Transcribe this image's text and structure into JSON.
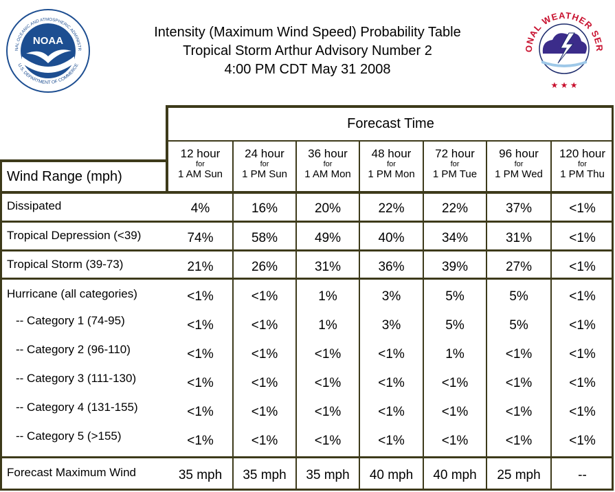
{
  "title": {
    "line1": "Intensity (Maximum Wind Speed) Probability Table",
    "line2": "Tropical Storm Arthur Advisory Number 2",
    "line3": "4:00 PM CDT May 31 2008"
  },
  "logos": {
    "noaa": {
      "icon": "noaa-logo",
      "text_ring": "NATIONAL OCEANIC AND ATMOSPHERIC ADMINISTRATION · U.S. DEPARTMENT OF COMMERCE",
      "center": "NOAA"
    },
    "nws": {
      "icon": "nws-logo",
      "text_ring": "NATIONAL WEATHER SERVICE"
    }
  },
  "colors": {
    "border": "#3d3a1a",
    "noaa_blue": "#1d4e91",
    "nws_red": "#c8102e",
    "nws_navy": "#1b2a6b"
  },
  "table": {
    "header_title": "Forecast Time",
    "row_header": "Wind Range (mph)",
    "columns": [
      {
        "hours": "12 hour",
        "for": "for",
        "when": "1 AM Sun"
      },
      {
        "hours": "24 hour",
        "for": "for",
        "when": "1 PM Sun"
      },
      {
        "hours": "36 hour",
        "for": "for",
        "when": "1 AM Mon"
      },
      {
        "hours": "48 hour",
        "for": "for",
        "when": "1 PM Mon"
      },
      {
        "hours": "72 hour",
        "for": "for",
        "when": "1 PM Tue"
      },
      {
        "hours": "96 hour",
        "for": "for",
        "when": "1 PM Wed"
      },
      {
        "hours": "120 hour",
        "for": "for",
        "when": "1 PM Thu"
      }
    ],
    "rows": [
      {
        "label": "Dissipated",
        "values": [
          "4%",
          "16%",
          "20%",
          "22%",
          "22%",
          "37%",
          "<1%"
        ]
      },
      {
        "label": "Tropical Depression (<39)",
        "values": [
          "74%",
          "58%",
          "49%",
          "40%",
          "34%",
          "31%",
          "<1%"
        ]
      },
      {
        "label": "Tropical Storm (39-73)",
        "values": [
          "21%",
          "26%",
          "31%",
          "36%",
          "39%",
          "27%",
          "<1%"
        ]
      },
      {
        "label": "Hurricane (all categories)",
        "values": [
          "<1%",
          "<1%",
          "1%",
          "3%",
          "5%",
          "5%",
          "<1%"
        ]
      },
      {
        "label": "-- Category 1 (74-95)",
        "values": [
          "<1%",
          "<1%",
          "1%",
          "3%",
          "5%",
          "5%",
          "<1%"
        ]
      },
      {
        "label": "-- Category 2 (96-110)",
        "values": [
          "<1%",
          "<1%",
          "<1%",
          "<1%",
          "1%",
          "<1%",
          "<1%"
        ]
      },
      {
        "label": "-- Category 3 (111-130)",
        "values": [
          "<1%",
          "<1%",
          "<1%",
          "<1%",
          "<1%",
          "<1%",
          "<1%"
        ]
      },
      {
        "label": "-- Category 4 (131-155)",
        "values": [
          "<1%",
          "<1%",
          "<1%",
          "<1%",
          "<1%",
          "<1%",
          "<1%"
        ]
      },
      {
        "label": "-- Category 5 (>155)",
        "values": [
          "<1%",
          "<1%",
          "<1%",
          "<1%",
          "<1%",
          "<1%",
          "<1%"
        ]
      },
      {
        "label": "Forecast Maximum Wind",
        "values": [
          "35 mph",
          "35 mph",
          "35 mph",
          "40 mph",
          "40 mph",
          "25 mph",
          "--"
        ]
      }
    ]
  }
}
